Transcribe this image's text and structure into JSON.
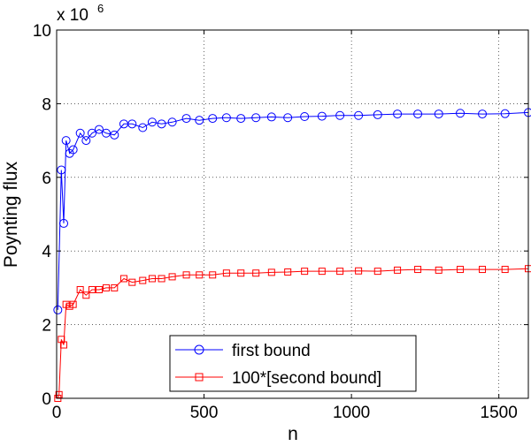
{
  "chart_data": {
    "type": "line",
    "title": "",
    "xlabel": "n",
    "ylabel": "Poynting flux",
    "exponent_label": "x 10",
    "exponent_power": "6",
    "xlim": [
      0,
      1600
    ],
    "ylim": [
      0,
      10
    ],
    "xticks": [
      0,
      500,
      1000,
      1500
    ],
    "xtick_labels": [
      "0",
      "500",
      "1000",
      "1500"
    ],
    "yticks": [
      0,
      2,
      4,
      6,
      8,
      10
    ],
    "ytick_labels": [
      "0",
      "2",
      "4",
      "6",
      "8",
      "10"
    ],
    "grid": true,
    "legend_position": "bottom-center",
    "series": [
      {
        "name": "first bound",
        "color": "#0000ff",
        "marker": "circle",
        "x": [
          4,
          16,
          24,
          32,
          44,
          56,
          80,
          100,
          120,
          144,
          168,
          196,
          228,
          256,
          292,
          324,
          356,
          392,
          440,
          484,
          529,
          576,
          625,
          676,
          729,
          784,
          841,
          900,
          961,
          1024,
          1089,
          1156,
          1225,
          1296,
          1369,
          1444,
          1521,
          1600
        ],
        "y": [
          2.4,
          6.2,
          4.75,
          7.0,
          6.65,
          6.75,
          7.2,
          7.0,
          7.2,
          7.3,
          7.2,
          7.15,
          7.45,
          7.45,
          7.35,
          7.5,
          7.45,
          7.5,
          7.6,
          7.55,
          7.6,
          7.62,
          7.6,
          7.62,
          7.64,
          7.62,
          7.65,
          7.66,
          7.68,
          7.68,
          7.7,
          7.72,
          7.72,
          7.72,
          7.74,
          7.72,
          7.73,
          7.76
        ]
      },
      {
        "name": "100*[second bound]",
        "color": "#ff0000",
        "marker": "square",
        "x": [
          4,
          8,
          16,
          24,
          32,
          44,
          56,
          80,
          100,
          120,
          144,
          168,
          196,
          228,
          256,
          292,
          324,
          356,
          392,
          440,
          484,
          529,
          576,
          625,
          676,
          729,
          784,
          841,
          900,
          961,
          1024,
          1089,
          1156,
          1225,
          1296,
          1369,
          1444,
          1521,
          1600
        ],
        "y": [
          0.0,
          0.1,
          1.6,
          1.45,
          2.55,
          2.5,
          2.55,
          2.95,
          2.8,
          2.95,
          2.95,
          3.0,
          3.0,
          3.25,
          3.15,
          3.2,
          3.25,
          3.25,
          3.3,
          3.35,
          3.35,
          3.35,
          3.4,
          3.4,
          3.4,
          3.42,
          3.43,
          3.45,
          3.45,
          3.45,
          3.46,
          3.45,
          3.48,
          3.5,
          3.48,
          3.5,
          3.5,
          3.5,
          3.52
        ]
      }
    ]
  }
}
